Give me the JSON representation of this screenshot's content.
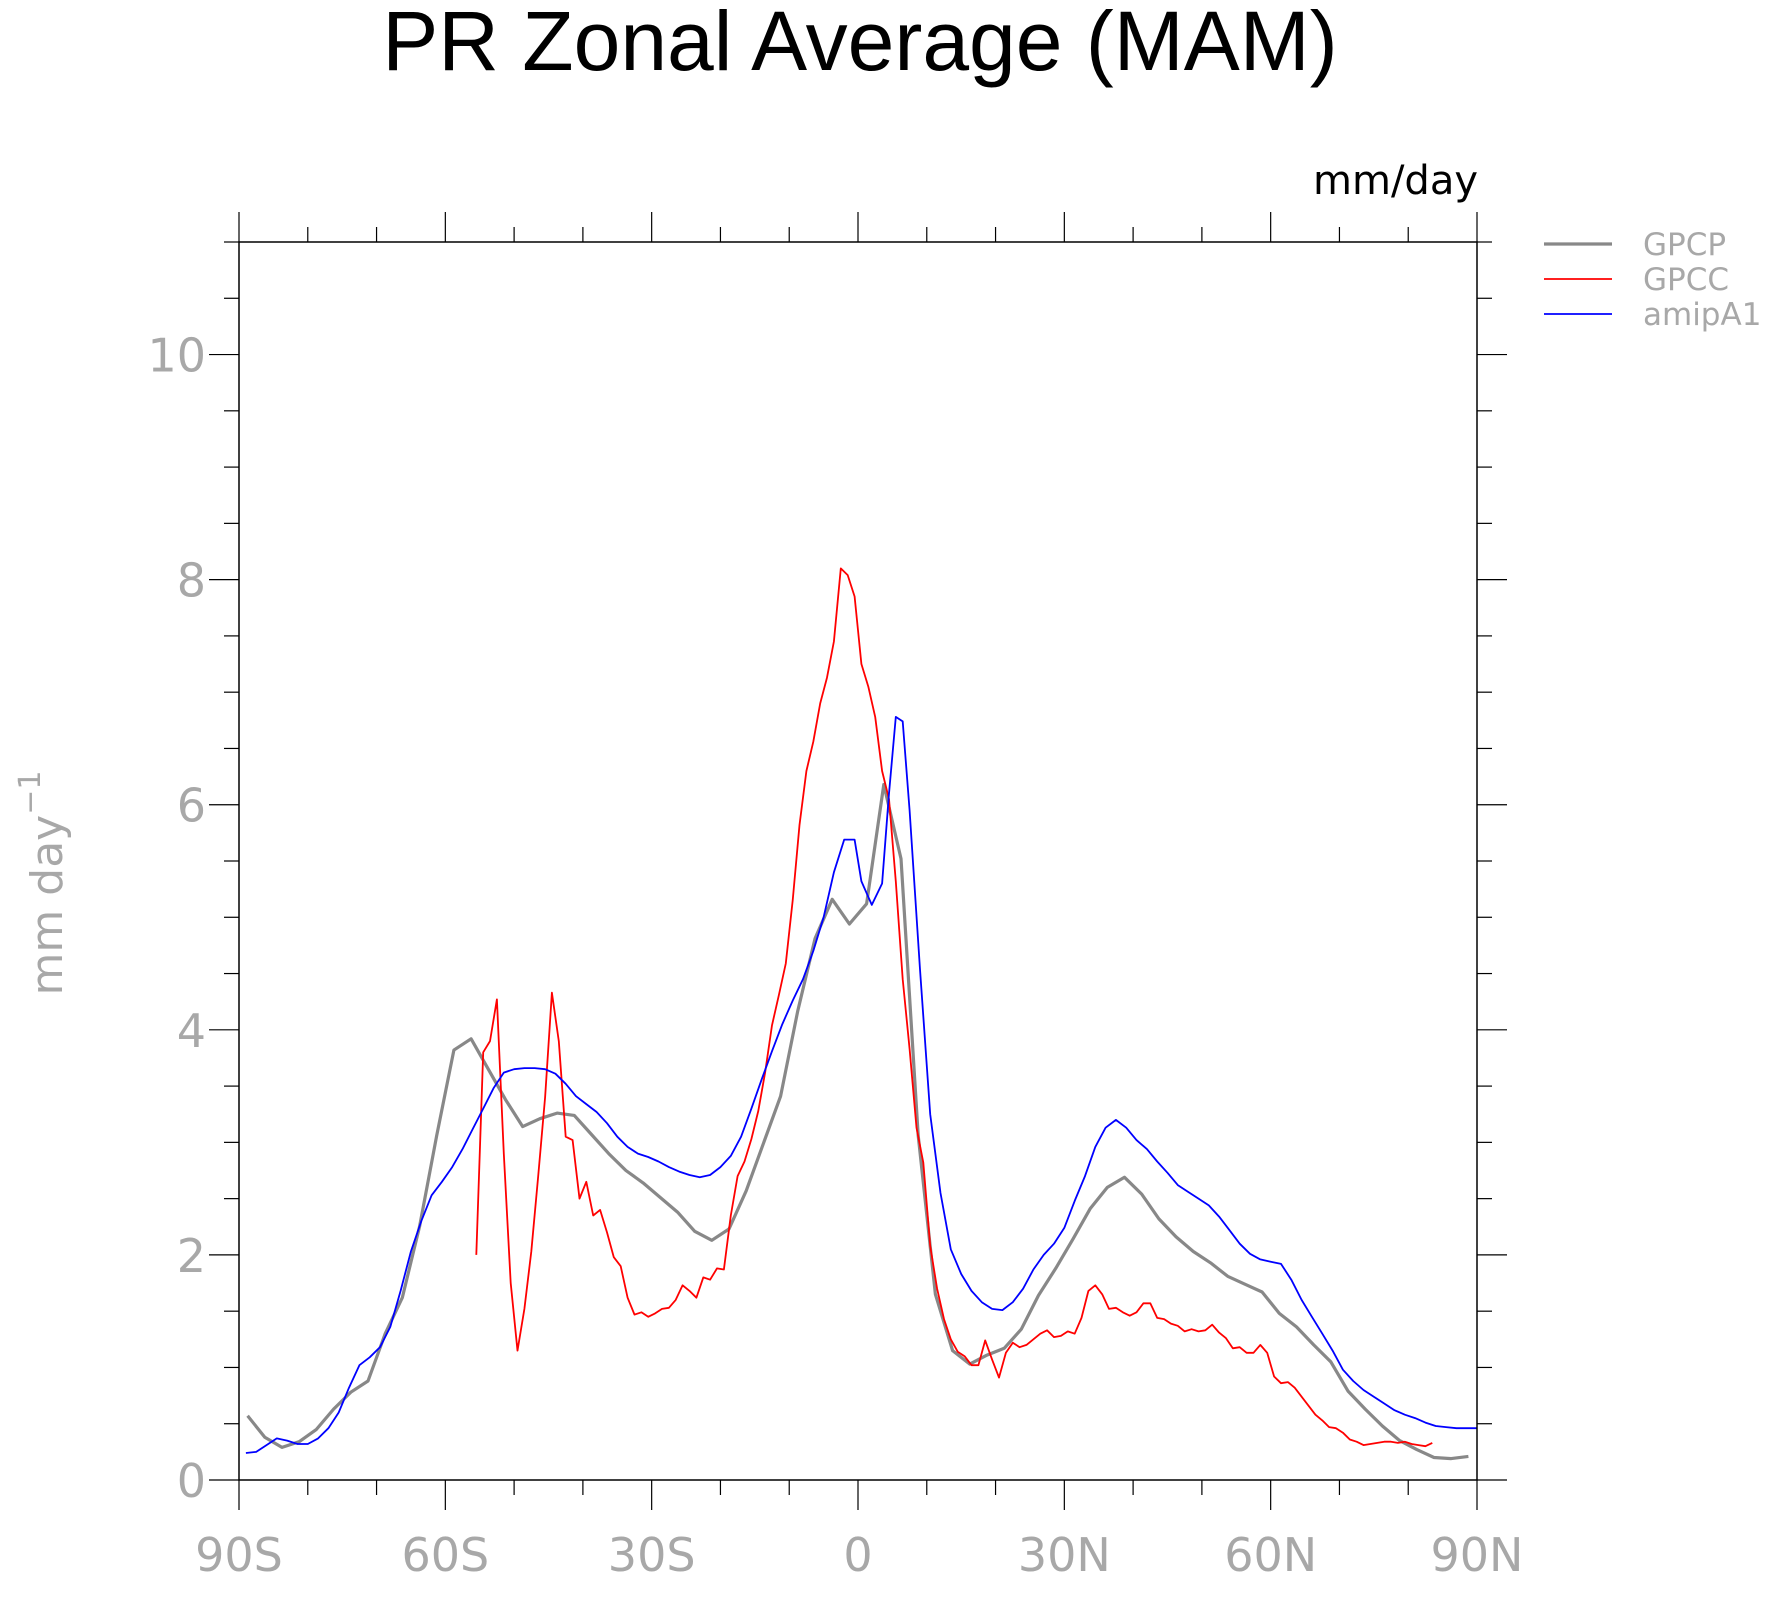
{
  "chart_data": {
    "type": "line",
    "title": "PR Zonal Average (MAM)",
    "units_label": "mm/day",
    "ylabel": "mm day",
    "ylabel_exponent": "−1",
    "xlim": [
      -90,
      90
    ],
    "ylim": [
      0,
      11
    ],
    "x_ticks": [
      -90,
      -60,
      -30,
      0,
      30,
      60,
      90
    ],
    "x_tick_labels": [
      "90S",
      "60S",
      "30S",
      "0",
      "30N",
      "60N",
      "90N"
    ],
    "y_ticks": [
      0,
      2,
      4,
      6,
      8,
      10
    ],
    "y_tick_labels": [
      "0",
      "2",
      "4",
      "6",
      "8",
      "10"
    ],
    "legend_position": "top-right outside",
    "series": [
      {
        "name": "GPCP",
        "color": "#888888",
        "x": [
          -88.75,
          -86.25,
          -83.75,
          -81.25,
          -78.75,
          -76.25,
          -73.75,
          -71.25,
          -68.75,
          -66.25,
          -63.75,
          -61.25,
          -58.75,
          -56.25,
          -53.75,
          -51.25,
          -48.75,
          -46.25,
          -43.75,
          -41.25,
          -38.75,
          -36.25,
          -33.75,
          -31.25,
          -28.75,
          -26.25,
          -23.75,
          -21.25,
          -18.75,
          -16.25,
          -13.75,
          -11.25,
          -8.75,
          -6.25,
          -3.75,
          -1.25,
          1.25,
          3.75,
          6.25,
          8.75,
          11.25,
          13.75,
          16.25,
          18.75,
          21.25,
          23.75,
          26.25,
          28.75,
          31.25,
          33.75,
          36.25,
          38.75,
          41.25,
          43.75,
          46.25,
          48.75,
          51.25,
          53.75,
          56.25,
          58.75,
          61.25,
          63.75,
          66.25,
          68.75,
          71.25,
          73.75,
          76.25,
          78.75,
          81.25,
          83.75,
          86.25,
          88.75
        ],
        "values": [
          0.57,
          0.38,
          0.29,
          0.34,
          0.45,
          0.63,
          0.78,
          0.88,
          1.3,
          1.62,
          2.25,
          3.06,
          3.82,
          3.92,
          3.65,
          3.38,
          3.14,
          3.21,
          3.26,
          3.24,
          3.07,
          2.9,
          2.75,
          2.64,
          2.51,
          2.38,
          2.21,
          2.13,
          2.23,
          2.57,
          2.99,
          3.41,
          4.17,
          4.81,
          5.16,
          4.94,
          5.12,
          6.18,
          5.52,
          3.06,
          1.65,
          1.15,
          1.03,
          1.11,
          1.17,
          1.34,
          1.64,
          1.88,
          2.14,
          2.41,
          2.6,
          2.69,
          2.54,
          2.32,
          2.16,
          2.03,
          1.93,
          1.81,
          1.74,
          1.67,
          1.48,
          1.36,
          1.2,
          1.05,
          0.79,
          0.63,
          0.48,
          0.35,
          0.27,
          0.2,
          0.19,
          0.21
        ]
      },
      {
        "name": "GPCC",
        "color": "#ff0000",
        "x": [
          -55.5,
          -54.5,
          -53.5,
          -52.5,
          -51.5,
          -50.5,
          -49.5,
          -48.5,
          -47.5,
          -46.5,
          -45.5,
          -44.5,
          -43.5,
          -42.5,
          -41.5,
          -40.5,
          -39.5,
          -38.5,
          -37.5,
          -36.5,
          -35.5,
          -34.5,
          -33.5,
          -32.5,
          -31.5,
          -30.5,
          -29.5,
          -28.5,
          -27.5,
          -26.5,
          -25.5,
          -24.5,
          -23.5,
          -22.5,
          -21.5,
          -20.5,
          -19.5,
          -18.5,
          -17.5,
          -16.5,
          -15.5,
          -14.5,
          -13.5,
          -12.5,
          -11.5,
          -10.5,
          -9.5,
          -8.5,
          -7.5,
          -6.5,
          -5.5,
          -4.5,
          -3.5,
          -2.5,
          -1.5,
          -0.5,
          0.5,
          1.5,
          2.5,
          3.5,
          4.5,
          5.5,
          6.5,
          7.5,
          8.5,
          9.5,
          10.5,
          11.5,
          12.5,
          13.5,
          14.5,
          15.5,
          16.5,
          17.5,
          18.5,
          19.5,
          20.5,
          21.5,
          22.5,
          23.5,
          24.5,
          25.5,
          26.5,
          27.5,
          28.5,
          29.5,
          30.5,
          31.5,
          32.5,
          33.5,
          34.5,
          35.5,
          36.5,
          37.5,
          38.5,
          39.5,
          40.5,
          41.5,
          42.5,
          43.5,
          44.5,
          45.5,
          46.5,
          47.5,
          48.5,
          49.5,
          50.5,
          51.5,
          52.5,
          53.5,
          54.5,
          55.5,
          56.5,
          57.5,
          58.5,
          59.5,
          60.5,
          61.5,
          62.5,
          63.5,
          64.5,
          65.5,
          66.5,
          67.5,
          68.5,
          69.5,
          70.5,
          71.5,
          72.5,
          73.5,
          74.5,
          75.5,
          76.5,
          77.5,
          78.5,
          79.5,
          80.5,
          81.5,
          82.5,
          83.5
        ],
        "values": [
          2.0,
          3.8,
          3.9,
          4.27,
          2.9,
          1.75,
          1.15,
          1.52,
          2.03,
          2.7,
          3.4,
          4.33,
          3.9,
          3.05,
          3.02,
          2.5,
          2.65,
          2.35,
          2.4,
          2.2,
          1.98,
          1.9,
          1.62,
          1.47,
          1.49,
          1.45,
          1.48,
          1.52,
          1.53,
          1.6,
          1.73,
          1.68,
          1.62,
          1.8,
          1.78,
          1.88,
          1.87,
          2.35,
          2.7,
          2.83,
          3.03,
          3.28,
          3.62,
          4.04,
          4.31,
          4.59,
          5.15,
          5.82,
          6.3,
          6.56,
          6.9,
          7.13,
          7.45,
          8.1,
          8.04,
          7.85,
          7.25,
          7.05,
          6.78,
          6.3,
          6.05,
          5.32,
          4.45,
          3.83,
          3.13,
          2.82,
          2.08,
          1.7,
          1.43,
          1.25,
          1.14,
          1.1,
          1.02,
          1.02,
          1.24,
          1.07,
          0.91,
          1.13,
          1.22,
          1.18,
          1.2,
          1.25,
          1.3,
          1.33,
          1.27,
          1.28,
          1.32,
          1.3,
          1.44,
          1.68,
          1.73,
          1.65,
          1.52,
          1.53,
          1.49,
          1.46,
          1.49,
          1.57,
          1.57,
          1.44,
          1.43,
          1.39,
          1.37,
          1.32,
          1.34,
          1.32,
          1.33,
          1.38,
          1.31,
          1.26,
          1.17,
          1.18,
          1.13,
          1.13,
          1.2,
          1.13,
          0.92,
          0.86,
          0.87,
          0.82,
          0.74,
          0.66,
          0.58,
          0.53,
          0.47,
          0.46,
          0.42,
          0.36,
          0.34,
          0.31,
          0.32,
          0.33,
          0.34,
          0.34,
          0.33,
          0.34,
          0.32,
          0.31,
          0.3,
          0.33
        ]
      },
      {
        "name": "amipA1",
        "color": "#0000ff",
        "x": [
          -89.0,
          -87.5,
          -86.0,
          -84.5,
          -83.0,
          -81.5,
          -80.0,
          -78.5,
          -77.0,
          -75.5,
          -74.0,
          -72.5,
          -71.0,
          -69.5,
          -68.0,
          -66.5,
          -65.0,
          -63.5,
          -62.0,
          -60.5,
          -59.0,
          -57.5,
          -56.0,
          -54.5,
          -53.0,
          -51.5,
          -50.0,
          -48.5,
          -47.0,
          -45.5,
          -44.0,
          -42.5,
          -41.0,
          -39.5,
          -38.0,
          -36.5,
          -35.0,
          -33.5,
          -32.0,
          -30.5,
          -29.0,
          -27.5,
          -26.0,
          -24.5,
          -23.0,
          -21.5,
          -20.0,
          -18.5,
          -17.0,
          -15.5,
          -14.0,
          -12.5,
          -11.0,
          -9.5,
          -8.0,
          -6.5,
          -5.0,
          -3.5,
          -2.0,
          -0.5,
          0.5,
          2.0,
          3.5,
          4.5,
          5.5,
          6.5,
          7.5,
          9.0,
          10.5,
          12.0,
          13.5,
          15.0,
          16.5,
          18.0,
          19.5,
          21.0,
          22.5,
          24.0,
          25.5,
          27.0,
          28.5,
          30.0,
          31.5,
          33.0,
          34.5,
          36.0,
          37.5,
          39.0,
          40.5,
          42.0,
          43.5,
          45.0,
          46.5,
          48.0,
          49.5,
          51.0,
          52.5,
          54.0,
          55.5,
          57.0,
          58.5,
          60.0,
          61.5,
          63.0,
          64.5,
          66.0,
          67.5,
          69.0,
          70.5,
          72.0,
          73.5,
          75.0,
          76.5,
          78.0,
          79.5,
          81.0,
          82.5,
          84.0,
          85.5,
          87.0,
          88.5,
          90.0
        ],
        "values": [
          0.24,
          0.25,
          0.31,
          0.37,
          0.35,
          0.32,
          0.32,
          0.37,
          0.46,
          0.6,
          0.82,
          1.02,
          1.09,
          1.18,
          1.36,
          1.68,
          2.03,
          2.3,
          2.53,
          2.65,
          2.78,
          2.94,
          3.12,
          3.3,
          3.48,
          3.62,
          3.65,
          3.66,
          3.66,
          3.65,
          3.61,
          3.52,
          3.41,
          3.34,
          3.27,
          3.17,
          3.05,
          2.96,
          2.9,
          2.87,
          2.83,
          2.78,
          2.74,
          2.71,
          2.69,
          2.71,
          2.78,
          2.88,
          3.05,
          3.3,
          3.56,
          3.81,
          4.05,
          4.26,
          4.45,
          4.7,
          5.0,
          5.4,
          5.69,
          5.69,
          5.32,
          5.11,
          5.3,
          6.1,
          6.78,
          6.74,
          5.95,
          4.55,
          3.25,
          2.55,
          2.05,
          1.83,
          1.68,
          1.58,
          1.52,
          1.51,
          1.58,
          1.7,
          1.87,
          2.0,
          2.1,
          2.24,
          2.48,
          2.7,
          2.96,
          3.13,
          3.2,
          3.13,
          3.02,
          2.94,
          2.83,
          2.73,
          2.62,
          2.56,
          2.5,
          2.44,
          2.34,
          2.22,
          2.1,
          2.01,
          1.96,
          1.94,
          1.92,
          1.78,
          1.6,
          1.45,
          1.3,
          1.15,
          0.98,
          0.88,
          0.8,
          0.74,
          0.68,
          0.62,
          0.58,
          0.55,
          0.51,
          0.48,
          0.47,
          0.46,
          0.46,
          0.46
        ]
      }
    ]
  }
}
